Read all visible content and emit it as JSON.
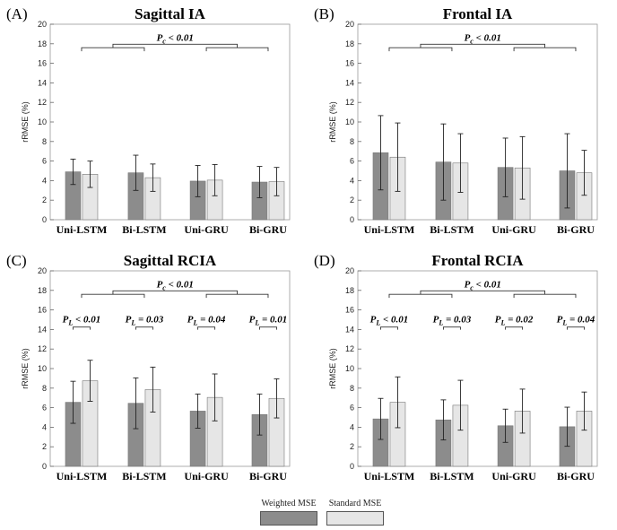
{
  "legend": {
    "weighted": {
      "label": "Weighted MSE",
      "color": "#8c8c8c"
    },
    "standard": {
      "label": "Standard MSE",
      "color": "#e6e6e6"
    }
  },
  "chart_data": [
    {
      "type": "bar",
      "panel": "(A)",
      "title": "Sagittal IA",
      "ylabel": "rRMSE (%)",
      "ylim": [
        0,
        20
      ],
      "yticks": [
        0,
        2,
        4,
        6,
        8,
        10,
        12,
        14,
        16,
        18,
        20
      ],
      "categories": [
        "Uni-LSTM",
        "Bi-LSTM",
        "Uni-GRU",
        "Bi-GRU"
      ],
      "series": [
        {
          "name": "Weighted MSE",
          "values": [
            4.9,
            4.8,
            3.95,
            3.85
          ],
          "errors": [
            1.3,
            1.8,
            1.6,
            1.6
          ]
        },
        {
          "name": "Standard MSE",
          "values": [
            4.65,
            4.3,
            4.05,
            3.9
          ],
          "errors": [
            1.35,
            1.4,
            1.6,
            1.45
          ]
        }
      ],
      "cross_comparison": {
        "label": "P",
        "sub": "c",
        "op": "<",
        "value": "0.01"
      },
      "within_comparisons": []
    },
    {
      "type": "bar",
      "panel": "(B)",
      "title": "Frontal IA",
      "ylabel": "rRMSE (%)",
      "ylim": [
        0,
        20
      ],
      "yticks": [
        0,
        2,
        4,
        6,
        8,
        10,
        12,
        14,
        16,
        18,
        20
      ],
      "categories": [
        "Uni-LSTM",
        "Bi-LSTM",
        "Uni-GRU",
        "Bi-GRU"
      ],
      "series": [
        {
          "name": "Weighted MSE",
          "values": [
            6.85,
            5.9,
            5.35,
            5.0
          ],
          "errors": [
            3.8,
            3.9,
            3.0,
            3.8
          ]
        },
        {
          "name": "Standard MSE",
          "values": [
            6.4,
            5.8,
            5.3,
            4.8
          ],
          "errors": [
            3.5,
            3.0,
            3.2,
            2.3
          ]
        }
      ],
      "cross_comparison": {
        "label": "P",
        "sub": "c",
        "op": "<",
        "value": "0.01"
      },
      "within_comparisons": []
    },
    {
      "type": "bar",
      "panel": "(C)",
      "title": "Sagittal RCIA",
      "ylabel": "rRMSE (%)",
      "ylim": [
        0,
        20
      ],
      "yticks": [
        0,
        2,
        4,
        6,
        8,
        10,
        12,
        14,
        16,
        18,
        20
      ],
      "categories": [
        "Uni-LSTM",
        "Bi-LSTM",
        "Uni-GRU",
        "Bi-GRU"
      ],
      "series": [
        {
          "name": "Weighted MSE",
          "values": [
            6.55,
            6.45,
            5.65,
            5.3
          ],
          "errors": [
            2.15,
            2.6,
            1.75,
            2.1
          ]
        },
        {
          "name": "Standard MSE",
          "values": [
            8.75,
            7.85,
            7.05,
            6.95
          ],
          "errors": [
            2.1,
            2.3,
            2.4,
            2.0
          ]
        }
      ],
      "cross_comparison": {
        "label": "P",
        "sub": "c",
        "op": "<",
        "value": "0.01"
      },
      "within_comparisons": [
        {
          "label": "P",
          "sub": "L",
          "op": "<",
          "value": "0.01"
        },
        {
          "label": "P",
          "sub": "L",
          "op": "=",
          "value": "0.03"
        },
        {
          "label": "P",
          "sub": "L",
          "op": "=",
          "value": "0.04"
        },
        {
          "label": "P",
          "sub": "L",
          "op": "=",
          "value": "0.01"
        }
      ]
    },
    {
      "type": "bar",
      "panel": "(D)",
      "title": "Frontal RCIA",
      "ylabel": "rRMSE (%)",
      "ylim": [
        0,
        20
      ],
      "yticks": [
        0,
        2,
        4,
        6,
        8,
        10,
        12,
        14,
        16,
        18,
        20
      ],
      "categories": [
        "Uni-LSTM",
        "Bi-LSTM",
        "Uni-GRU",
        "Bi-GRU"
      ],
      "series": [
        {
          "name": "Weighted MSE",
          "values": [
            4.85,
            4.75,
            4.15,
            4.05
          ],
          "errors": [
            2.1,
            2.05,
            1.7,
            2.0
          ]
        },
        {
          "name": "Standard MSE",
          "values": [
            6.55,
            6.25,
            5.65,
            5.65
          ],
          "errors": [
            2.6,
            2.55,
            2.25,
            1.95
          ]
        }
      ],
      "cross_comparison": {
        "label": "P",
        "sub": "c",
        "op": "<",
        "value": "0.01"
      },
      "within_comparisons": [
        {
          "label": "P",
          "sub": "L",
          "op": "<",
          "value": "0.01"
        },
        {
          "label": "P",
          "sub": "L",
          "op": "=",
          "value": "0.03"
        },
        {
          "label": "P",
          "sub": "L",
          "op": "=",
          "value": "0.02"
        },
        {
          "label": "P",
          "sub": "L",
          "op": "=",
          "value": "0.04"
        }
      ]
    }
  ]
}
